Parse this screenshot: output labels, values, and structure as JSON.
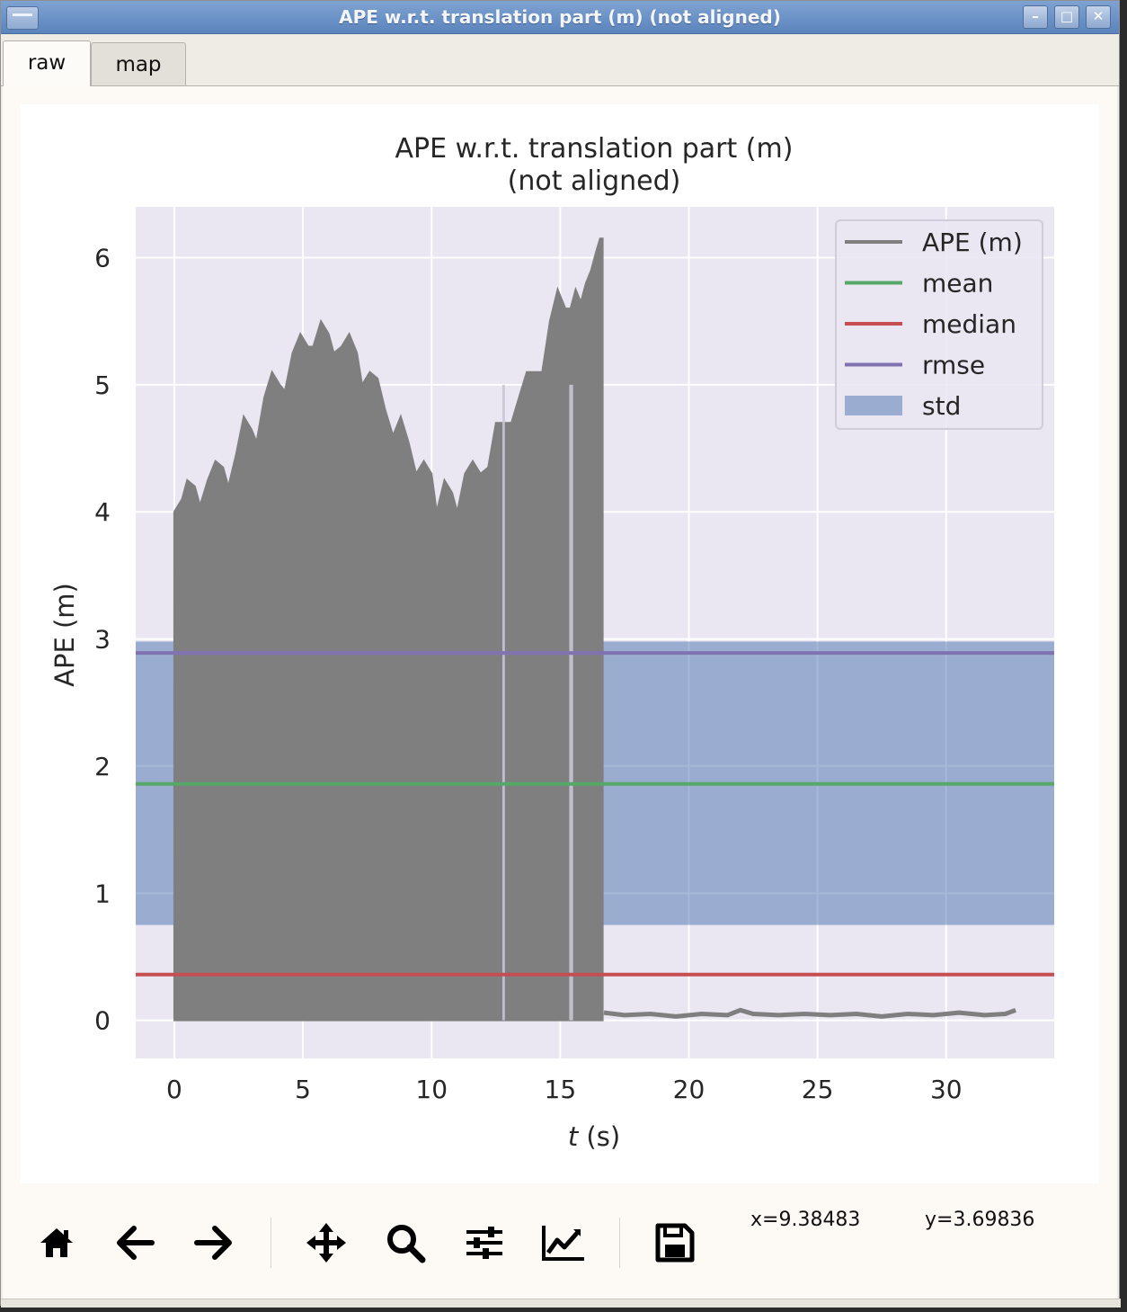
{
  "window": {
    "title": "APE w.r.t. translation part (m) (not aligned)",
    "minimize_glyph": "–",
    "maximize_glyph": "□",
    "close_glyph": "✕"
  },
  "tabs": [
    {
      "label": "raw",
      "active": true
    },
    {
      "label": "map",
      "active": false
    }
  ],
  "toolbar": {
    "buttons": [
      "home-icon",
      "back-arrow-icon",
      "forward-arrow-icon",
      "pan-icon",
      "zoom-icon",
      "configure-subplots-icon",
      "edit-axis-icon",
      "save-icon"
    ],
    "coord_x": "x=9.38483",
    "coord_y": "y=3.69836"
  },
  "chart_data": {
    "type": "line",
    "title": "APE w.r.t. translation part (m)",
    "subtitle": "(not aligned)",
    "xlabel_italic": "t",
    "xlabel_rest": " (s)",
    "ylabel": "APE (m)",
    "xlim": [
      -1.5,
      34.2
    ],
    "ylim": [
      -0.3,
      6.4
    ],
    "xticks": [
      0,
      5,
      10,
      15,
      20,
      25,
      30
    ],
    "yticks": [
      0,
      1,
      2,
      3,
      4,
      5,
      6
    ],
    "grid": true,
    "legend_position": "top-right",
    "colors": {
      "background": "#eae6f2",
      "ape": "#7f7f7f",
      "mean": "#55a868",
      "median": "#c44e52",
      "rmse": "#8172b2",
      "std": "#4c72b0"
    },
    "stats": {
      "mean": 1.86,
      "median": 0.36,
      "rmse": 2.89,
      "std_low": 0.75,
      "std_high": 2.98
    },
    "ape_envelope": {
      "upper": [
        [
          0.0,
          4.0
        ],
        [
          0.3,
          4.1
        ],
        [
          0.5,
          4.25
        ],
        [
          0.8,
          4.2
        ],
        [
          1.0,
          4.05
        ],
        [
          1.3,
          4.25
        ],
        [
          1.6,
          4.4
        ],
        [
          1.9,
          4.35
        ],
        [
          2.1,
          4.2
        ],
        [
          2.4,
          4.45
        ],
        [
          2.7,
          4.75
        ],
        [
          3.0,
          4.65
        ],
        [
          3.2,
          4.55
        ],
        [
          3.5,
          4.9
        ],
        [
          3.8,
          5.1
        ],
        [
          4.1,
          5.0
        ],
        [
          4.3,
          4.95
        ],
        [
          4.6,
          5.25
        ],
        [
          4.9,
          5.4
        ],
        [
          5.2,
          5.3
        ],
        [
          5.4,
          5.3
        ],
        [
          5.7,
          5.5
        ],
        [
          6.0,
          5.4
        ],
        [
          6.2,
          5.25
        ],
        [
          6.5,
          5.3
        ],
        [
          6.8,
          5.4
        ],
        [
          7.1,
          5.25
        ],
        [
          7.3,
          5.0
        ],
        [
          7.6,
          5.1
        ],
        [
          7.9,
          5.05
        ],
        [
          8.2,
          4.8
        ],
        [
          8.5,
          4.6
        ],
        [
          8.8,
          4.75
        ],
        [
          9.1,
          4.55
        ],
        [
          9.4,
          4.3
        ],
        [
          9.7,
          4.4
        ],
        [
          10.0,
          4.3
        ],
        [
          10.2,
          4.0
        ],
        [
          10.5,
          4.25
        ],
        [
          10.8,
          4.15
        ],
        [
          11.0,
          4.0
        ],
        [
          11.3,
          4.3
        ],
        [
          11.6,
          4.4
        ],
        [
          11.9,
          4.3
        ],
        [
          12.2,
          4.35
        ],
        [
          12.5,
          4.7
        ],
        [
          12.8,
          4.7
        ],
        [
          13.1,
          4.7
        ],
        [
          13.4,
          4.9
        ],
        [
          13.7,
          5.1
        ],
        [
          14.0,
          5.1
        ],
        [
          14.3,
          5.1
        ],
        [
          14.6,
          5.5
        ],
        [
          14.9,
          5.75
        ],
        [
          15.2,
          5.6
        ],
        [
          15.4,
          5.6
        ],
        [
          15.6,
          5.75
        ],
        [
          15.8,
          5.65
        ],
        [
          16.0,
          5.8
        ],
        [
          16.2,
          5.9
        ],
        [
          16.4,
          6.05
        ],
        [
          16.55,
          6.15
        ],
        [
          16.65,
          6.15
        ]
      ],
      "lower": 0.0,
      "gaps": [
        [
          12.75,
          12.85
        ],
        [
          15.35,
          15.5
        ]
      ]
    },
    "ape_tail": [
      [
        16.7,
        0.06
      ],
      [
        17.5,
        0.04
      ],
      [
        18.5,
        0.05
      ],
      [
        19.5,
        0.03
      ],
      [
        20.5,
        0.05
      ],
      [
        21.5,
        0.04
      ],
      [
        22.0,
        0.08
      ],
      [
        22.5,
        0.05
      ],
      [
        23.5,
        0.04
      ],
      [
        24.5,
        0.05
      ],
      [
        25.5,
        0.04
      ],
      [
        26.5,
        0.05
      ],
      [
        27.5,
        0.03
      ],
      [
        28.5,
        0.05
      ],
      [
        29.5,
        0.04
      ],
      [
        30.5,
        0.06
      ],
      [
        31.5,
        0.04
      ],
      [
        32.3,
        0.05
      ],
      [
        32.7,
        0.08
      ]
    ],
    "legend": [
      {
        "label": "APE (m)",
        "kind": "line",
        "color_key": "ape"
      },
      {
        "label": "mean",
        "kind": "line",
        "color_key": "mean"
      },
      {
        "label": "median",
        "kind": "line",
        "color_key": "median"
      },
      {
        "label": "rmse",
        "kind": "line",
        "color_key": "rmse"
      },
      {
        "label": "std",
        "kind": "patch",
        "color_key": "std"
      }
    ]
  }
}
